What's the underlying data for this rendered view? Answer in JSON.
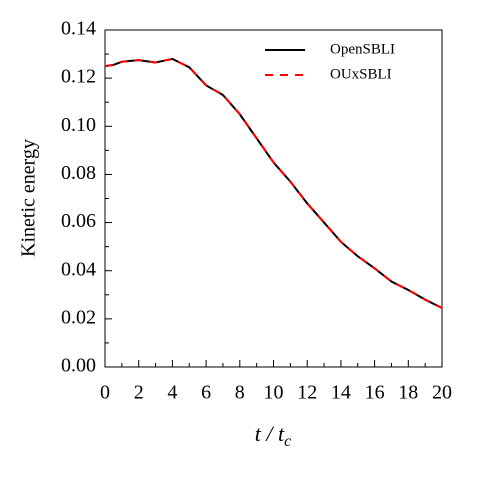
{
  "chart_data": {
    "type": "line",
    "x_label": {
      "main": "t / t",
      "subscript": "c"
    },
    "y_label": "Kinetic energy",
    "x": [
      0,
      0.5,
      1,
      2,
      3,
      4,
      5,
      6,
      7,
      8,
      9,
      10,
      11,
      12,
      13,
      14,
      15,
      16,
      17,
      18,
      19,
      20
    ],
    "series": [
      {
        "name": "OpenSBLI",
        "color": "#000000",
        "dashed": false,
        "values": [
          0.125,
          0.1255,
          0.1268,
          0.1275,
          0.1265,
          0.128,
          0.1245,
          0.117,
          0.113,
          0.105,
          0.095,
          0.085,
          0.077,
          0.068,
          0.06,
          0.052,
          0.046,
          0.041,
          0.0355,
          0.032,
          0.028,
          0.0245
        ]
      },
      {
        "name": "OUxSBLI",
        "color": "#ff0000",
        "dashed": true,
        "values": [
          0.125,
          0.1255,
          0.1268,
          0.1275,
          0.1265,
          0.128,
          0.1245,
          0.117,
          0.113,
          0.105,
          0.095,
          0.085,
          0.077,
          0.068,
          0.06,
          0.052,
          0.046,
          0.041,
          0.0355,
          0.032,
          0.028,
          0.0245
        ]
      }
    ],
    "xlim": [
      0,
      20
    ],
    "xticks": [
      0,
      2,
      4,
      6,
      8,
      10,
      12,
      14,
      16,
      18,
      20
    ],
    "ylim": [
      0,
      0.14
    ],
    "yticks": [
      {
        "value": 0,
        "label": "0.00"
      },
      0.02,
      0.04,
      0.06,
      0.08,
      {
        "value": 0.1,
        "label": "0.10"
      },
      0.12,
      0.14
    ],
    "legend": "upper right"
  }
}
